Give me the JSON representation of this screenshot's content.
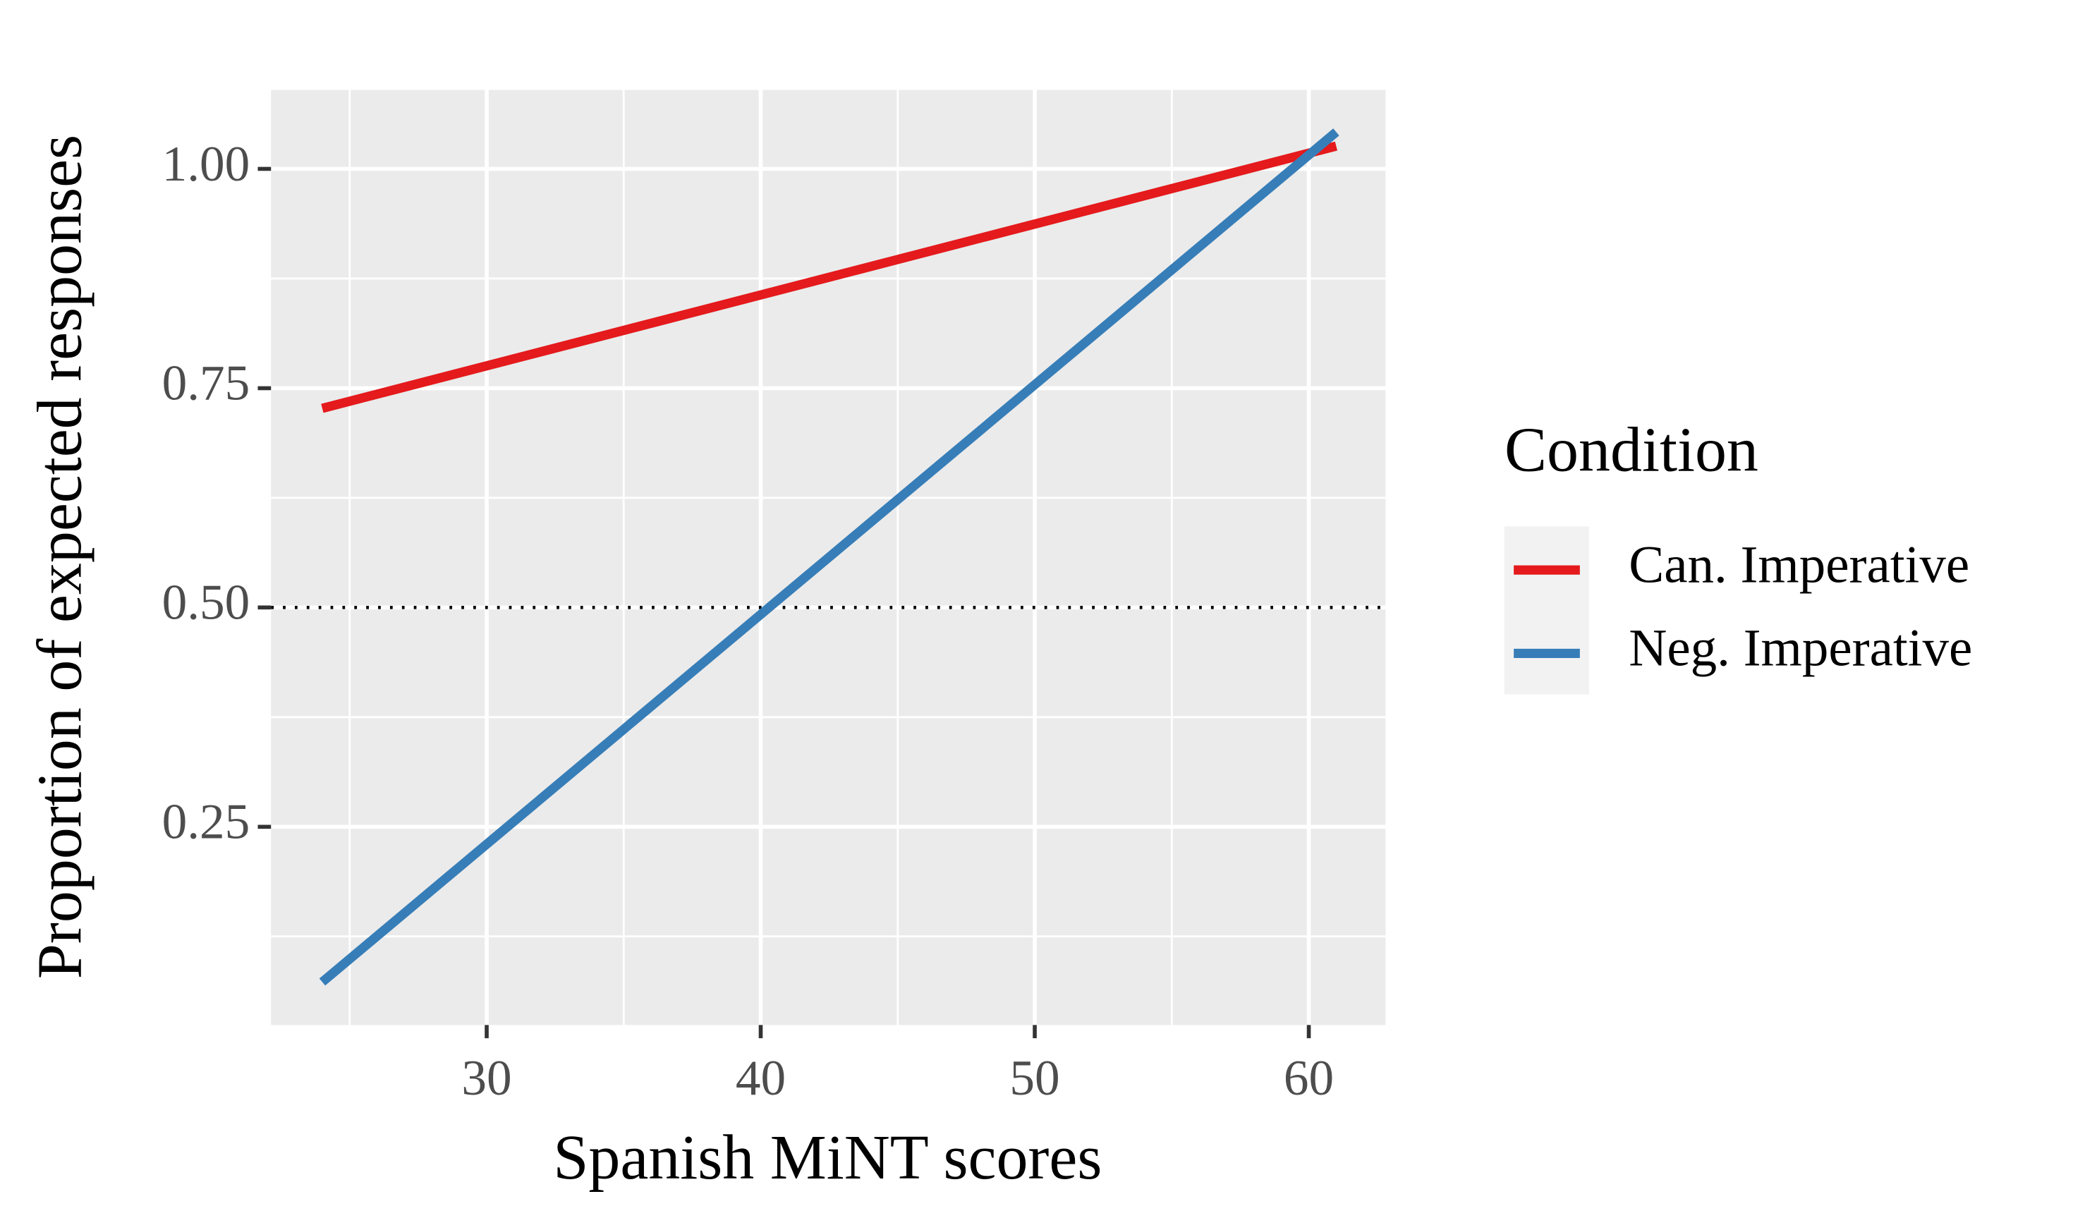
{
  "chart_data": {
    "type": "line",
    "x_label": "Spanish MiNT scores",
    "y_label": "Proportion of expected responses",
    "xlim": [
      22.13,
      62.8
    ],
    "ylim": [
      0.024,
      1.09
    ],
    "xticks": [
      30,
      40,
      50,
      60
    ],
    "yticks": [
      {
        "value": 0.25,
        "label": "0.25"
      },
      {
        "value": 0.5,
        "label": "0.50"
      },
      {
        "value": 0.75,
        "label": "0.75"
      },
      {
        "value": 1,
        "label": "1.00"
      }
    ],
    "xminor": [
      25,
      35,
      45,
      55
    ],
    "yminor": [
      0.125,
      0.375,
      0.625,
      0.875
    ],
    "hline": 0.5,
    "grid": true,
    "legend_title": "Condition",
    "x": [
      24,
      61
    ],
    "series": [
      {
        "name": "Can. Imperative",
        "color": "#e41a1c",
        "values": [
          0.727,
          1.026
        ]
      },
      {
        "name": "Neg. Imperative",
        "color": "#377eb8",
        "values": [
          0.073,
          1.042
        ]
      }
    ]
  }
}
